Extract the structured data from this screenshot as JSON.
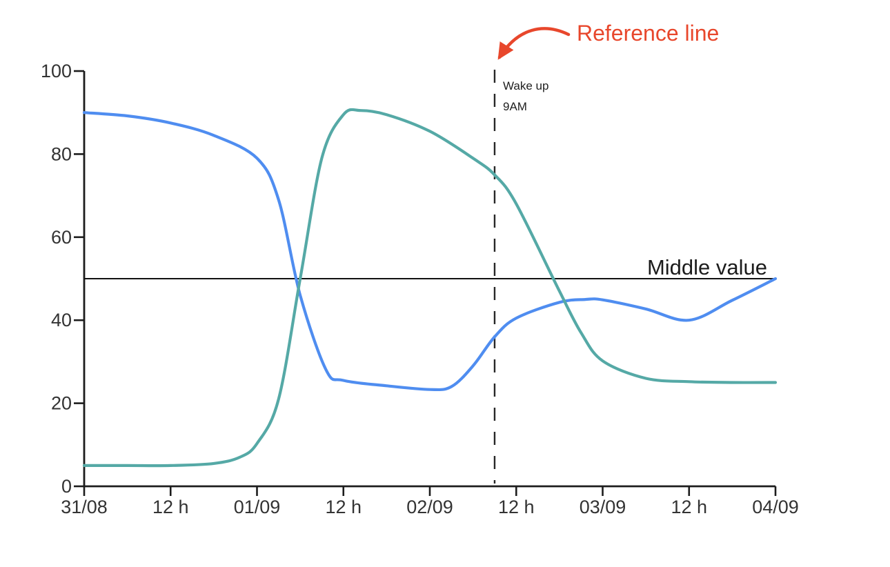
{
  "annotations": {
    "reference_line": "Reference line",
    "wake_up": [
      "Wake up",
      "9AM"
    ],
    "middle_value": "Middle value"
  },
  "colors": {
    "blue_series": "#4f8df0",
    "teal_series": "#55a9a6",
    "annotation_red": "#e8472c",
    "axis": "#1c1c1c",
    "tick_text": "#333333",
    "label_text": "#1c1c1c",
    "reference_line_dash": "#262626",
    "background": "#ffffff"
  },
  "chart_data": {
    "type": "line",
    "title": "",
    "xlabel": "",
    "ylabel": "",
    "grid": false,
    "legend": false,
    "x_axis": {
      "unit": "day-and-half-day ticks",
      "range_days": [
        0,
        4
      ],
      "tick_positions_days": [
        0,
        0.5,
        1,
        1.5,
        2,
        2.5,
        3,
        3.5,
        4
      ],
      "tick_labels": [
        "31/08",
        "12 h",
        "01/09",
        "12 h",
        "02/09",
        "12 h",
        "03/09",
        "12 h",
        "04/09"
      ]
    },
    "y_axis": {
      "range": [
        0,
        100
      ],
      "ticks": [
        0,
        20,
        40,
        60,
        80,
        100
      ]
    },
    "series": [
      {
        "name": "blue-line",
        "color": "#4f8df0",
        "points": [
          [
            0,
            90
          ],
          [
            0.25,
            89.2
          ],
          [
            0.5,
            87.5
          ],
          [
            0.75,
            84.5
          ],
          [
            1,
            79
          ],
          [
            1.125,
            69
          ],
          [
            1.25,
            46
          ],
          [
            1.4,
            28
          ],
          [
            1.5,
            25.5
          ],
          [
            1.75,
            24.2
          ],
          [
            2,
            23.3
          ],
          [
            2.125,
            24
          ],
          [
            2.25,
            29
          ],
          [
            2.375,
            36
          ],
          [
            2.5,
            40.5
          ],
          [
            2.75,
            44.3
          ],
          [
            2.9,
            45
          ],
          [
            3,
            44.9
          ],
          [
            3.25,
            42.7
          ],
          [
            3.5,
            40
          ],
          [
            3.75,
            44.8
          ],
          [
            4,
            50
          ]
        ]
      },
      {
        "name": "teal-line",
        "color": "#55a9a6",
        "points": [
          [
            0,
            5
          ],
          [
            0.25,
            5
          ],
          [
            0.5,
            5
          ],
          [
            0.75,
            5.5
          ],
          [
            0.9,
            7
          ],
          [
            1,
            10.3
          ],
          [
            1.125,
            21
          ],
          [
            1.25,
            50
          ],
          [
            1.375,
            79
          ],
          [
            1.5,
            89.5
          ],
          [
            1.6,
            90.5
          ],
          [
            1.75,
            89.5
          ],
          [
            2,
            85.5
          ],
          [
            2.25,
            79
          ],
          [
            2.375,
            75
          ],
          [
            2.5,
            68
          ],
          [
            2.75,
            47
          ],
          [
            2.875,
            37
          ],
          [
            3,
            30.2
          ],
          [
            3.25,
            26
          ],
          [
            3.5,
            25.2
          ],
          [
            3.75,
            25
          ],
          [
            4,
            25
          ]
        ]
      }
    ],
    "reference_vline": {
      "x_days": 2.375,
      "style": "dashed",
      "label_lines": [
        "Wake up",
        "9AM"
      ]
    },
    "reference_hline": {
      "y_value": 50,
      "label": "Middle value"
    },
    "callout": {
      "text": "Reference line",
      "color": "#e8472c",
      "points_to": "reference_vline"
    }
  }
}
